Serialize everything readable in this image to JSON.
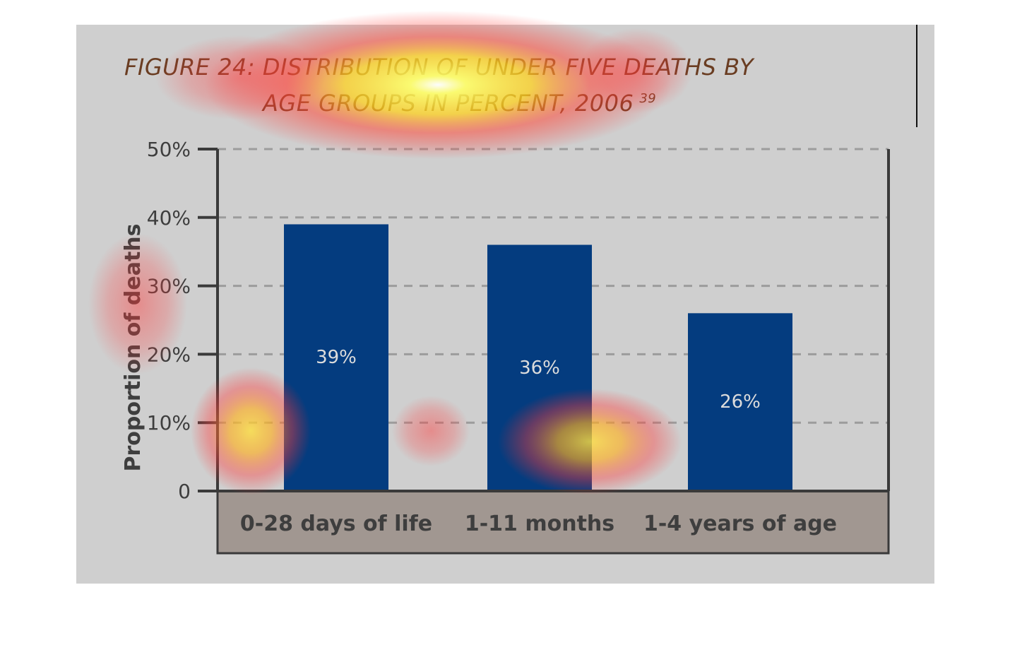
{
  "figure": {
    "title_line1": "FIGURE 24: DISTRIBUTION OF UNDER FIVE DEATHS BY",
    "title_line2": "AGE GROUPS IN PERCENT, 2006",
    "title_sup": "39"
  },
  "chart_data": {
    "type": "bar",
    "title": "FIGURE 24: DISTRIBUTION OF UNDER FIVE DEATHS BY AGE GROUPS IN PERCENT, 2006",
    "categories": [
      "0-28 days of life",
      "1-11 months",
      "1-4 years of age"
    ],
    "values": [
      39,
      36,
      26
    ],
    "data_labels": [
      "39%",
      "36%",
      "26%"
    ],
    "ylabel": "Proportion of deaths",
    "xlabel": "",
    "ylim": [
      0,
      50
    ],
    "yticks": [
      0,
      10,
      20,
      30,
      40,
      50
    ],
    "ytick_labels": [
      "0",
      "10%",
      "20%",
      "30%",
      "40%",
      "50%"
    ],
    "grid": true,
    "colors": {
      "bar": "#043c7f",
      "plot_background": "#cfcfcf",
      "category_band": "#a19791",
      "axis": "#3a3a3a",
      "grid": "#9c9c9c",
      "tick_text": "#3e3e3e",
      "data_label_text": "#dcdcdc"
    }
  }
}
